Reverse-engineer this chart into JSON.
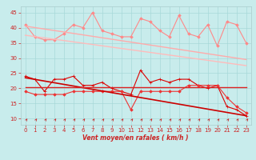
{
  "title": "",
  "xlabel": "Vent moyen/en rafales ( km/h )",
  "ylabel": "",
  "background_color": "#c8ecec",
  "grid_color": "#a8d8d8",
  "xlim": [
    -0.5,
    23.5
  ],
  "ylim": [
    8,
    47
  ],
  "yticks": [
    10,
    15,
    20,
    25,
    30,
    35,
    40,
    45
  ],
  "xticks": [
    0,
    1,
    2,
    3,
    4,
    5,
    6,
    7,
    8,
    9,
    10,
    11,
    12,
    13,
    14,
    15,
    16,
    17,
    18,
    19,
    20,
    21,
    22,
    23
  ],
  "series": [
    {
      "name": "rafales_markers",
      "x": [
        0,
        1,
        2,
        3,
        4,
        5,
        6,
        7,
        8,
        9,
        10,
        11,
        12,
        13,
        14,
        15,
        16,
        17,
        18,
        19,
        20,
        21,
        22,
        23
      ],
      "y": [
        41,
        37,
        36,
        36,
        38,
        41,
        40,
        45,
        39,
        38,
        37,
        37,
        43,
        42,
        39,
        37,
        44,
        38,
        37,
        41,
        34,
        42,
        41,
        35
      ],
      "color": "#ff8888",
      "lw": 0.8,
      "marker": "D",
      "ms": 1.8
    },
    {
      "name": "trend_rafales1",
      "x": [
        0,
        23
      ],
      "y": [
        40.5,
        29.5
      ],
      "color": "#ffaaaa",
      "lw": 1.0,
      "marker": null,
      "ms": 0
    },
    {
      "name": "trend_rafales2",
      "x": [
        0,
        23
      ],
      "y": [
        37.5,
        27.5
      ],
      "color": "#ffbbbb",
      "lw": 1.0,
      "marker": null,
      "ms": 0
    },
    {
      "name": "moyen_markers",
      "x": [
        0,
        1,
        2,
        3,
        4,
        5,
        6,
        7,
        8,
        9,
        10,
        11,
        12,
        13,
        14,
        15,
        16,
        17,
        18,
        19,
        20,
        21,
        22,
        23
      ],
      "y": [
        24,
        23,
        19,
        23,
        23,
        24,
        21,
        21,
        22,
        20,
        19,
        18,
        26,
        22,
        23,
        22,
        23,
        23,
        21,
        20,
        21,
        14,
        13,
        11
      ],
      "color": "#dd0000",
      "lw": 0.8,
      "marker": "+",
      "ms": 3.5
    },
    {
      "name": "moyen_flat",
      "x": [
        0,
        1,
        2,
        3,
        4,
        5,
        6,
        7,
        8,
        9,
        10,
        11,
        12,
        13,
        14,
        15,
        16,
        17,
        18,
        19,
        20,
        21,
        22,
        23
      ],
      "y": [
        19,
        18,
        18,
        18,
        18,
        19,
        19,
        19,
        19,
        19,
        19,
        13,
        19,
        19,
        19,
        19,
        19,
        21,
        21,
        21,
        21,
        17,
        14,
        12
      ],
      "color": "#ee3333",
      "lw": 0.8,
      "marker": "D",
      "ms": 1.8
    },
    {
      "name": "trend_moyen1",
      "x": [
        0,
        23
      ],
      "y": [
        23.5,
        11.0
      ],
      "color": "#cc0000",
      "lw": 1.2,
      "marker": null,
      "ms": 0
    },
    {
      "name": "trend_moyen2",
      "x": [
        0,
        23
      ],
      "y": [
        20.5,
        20.5
      ],
      "color": "#dd2222",
      "lw": 1.0,
      "marker": null,
      "ms": 0
    }
  ],
  "arrow_color": "#cc3333",
  "xlabel_color": "#cc2222",
  "tick_color": "#cc2222",
  "tick_fontsize": 5.0,
  "xlabel_fontsize": 5.5
}
